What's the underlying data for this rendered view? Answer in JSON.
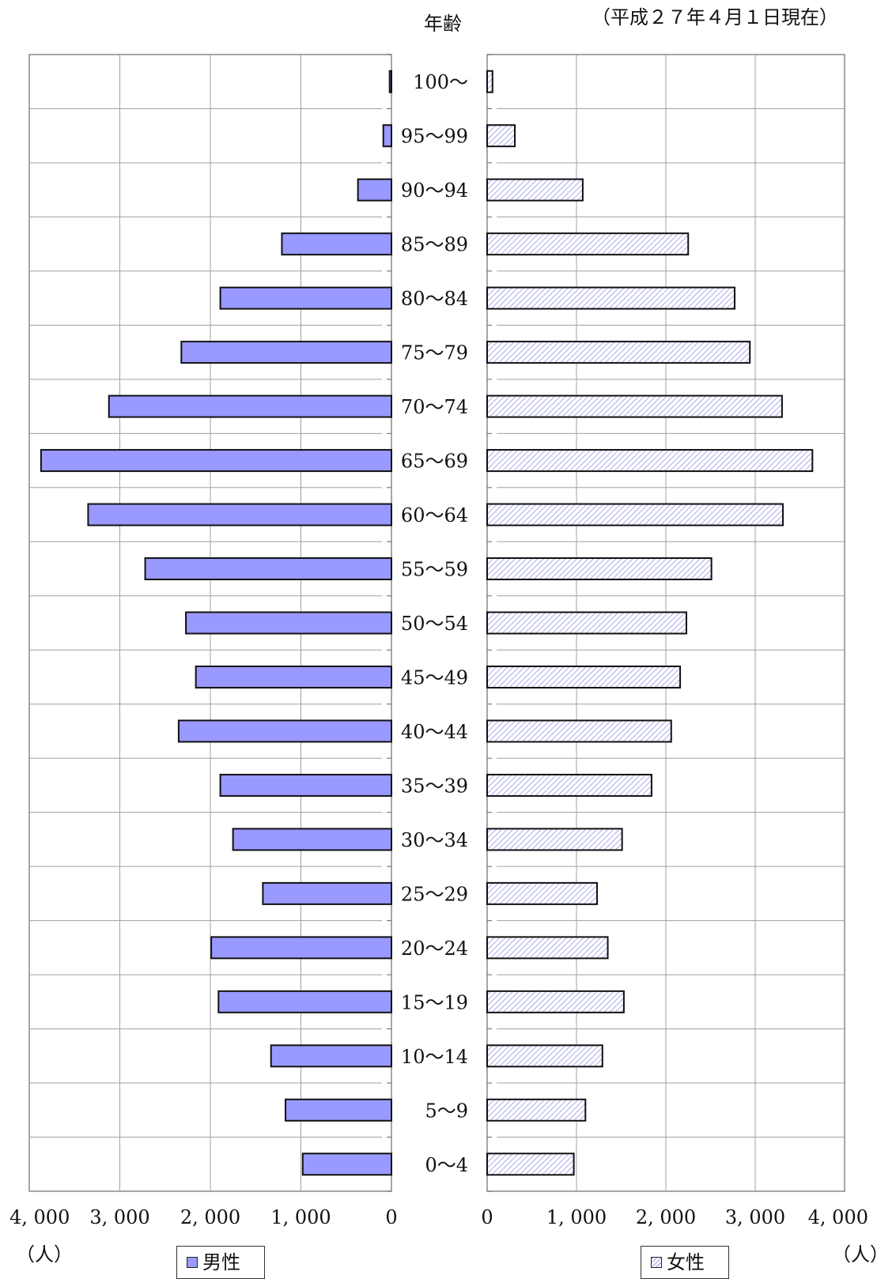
{
  "header": {
    "age_title": "年齢",
    "date_note": "（平成２７年４月１日現在）"
  },
  "units": {
    "left": "（人）",
    "right": "（人）"
  },
  "legend": {
    "male": "男性",
    "female": "女性"
  },
  "colors": {
    "male_fill": "#9999ff",
    "female_hatch": "#b0b0f0",
    "bar_border": "#111111",
    "grid": "#a0a0a0"
  },
  "chart_data": {
    "type": "bar",
    "orientation": "horizontal",
    "categories": [
      "100〜",
      "95〜99",
      "90〜94",
      "85〜89",
      "80〜84",
      "75〜79",
      "70〜74",
      "65〜69",
      "60〜64",
      "55〜59",
      "50〜54",
      "45〜49",
      "40〜44",
      "35〜39",
      "30〜34",
      "25〜29",
      "20〜24",
      "15〜19",
      "10〜14",
      "5〜9",
      "0〜4"
    ],
    "series": [
      {
        "name": "男性",
        "side": "left",
        "values": [
          20,
          90,
          370,
          1210,
          1890,
          2320,
          3120,
          3870,
          3350,
          2720,
          2270,
          2160,
          2350,
          1890,
          1750,
          1420,
          1990,
          1910,
          1330,
          1170,
          980
        ]
      },
      {
        "name": "女性",
        "side": "right",
        "values": [
          60,
          310,
          1070,
          2250,
          2770,
          2940,
          3300,
          3640,
          3310,
          2510,
          2230,
          2160,
          2060,
          1840,
          1510,
          1230,
          1350,
          1530,
          1290,
          1100,
          970
        ]
      }
    ],
    "left_ticks": [
      "4, 000",
      "3, 000",
      "2, 000",
      "1, 000",
      "0"
    ],
    "right_ticks": [
      "0",
      "1, 000",
      "2, 000",
      "3, 000",
      "4, 000"
    ],
    "xlim": [
      0,
      4000
    ],
    "grid": true
  }
}
